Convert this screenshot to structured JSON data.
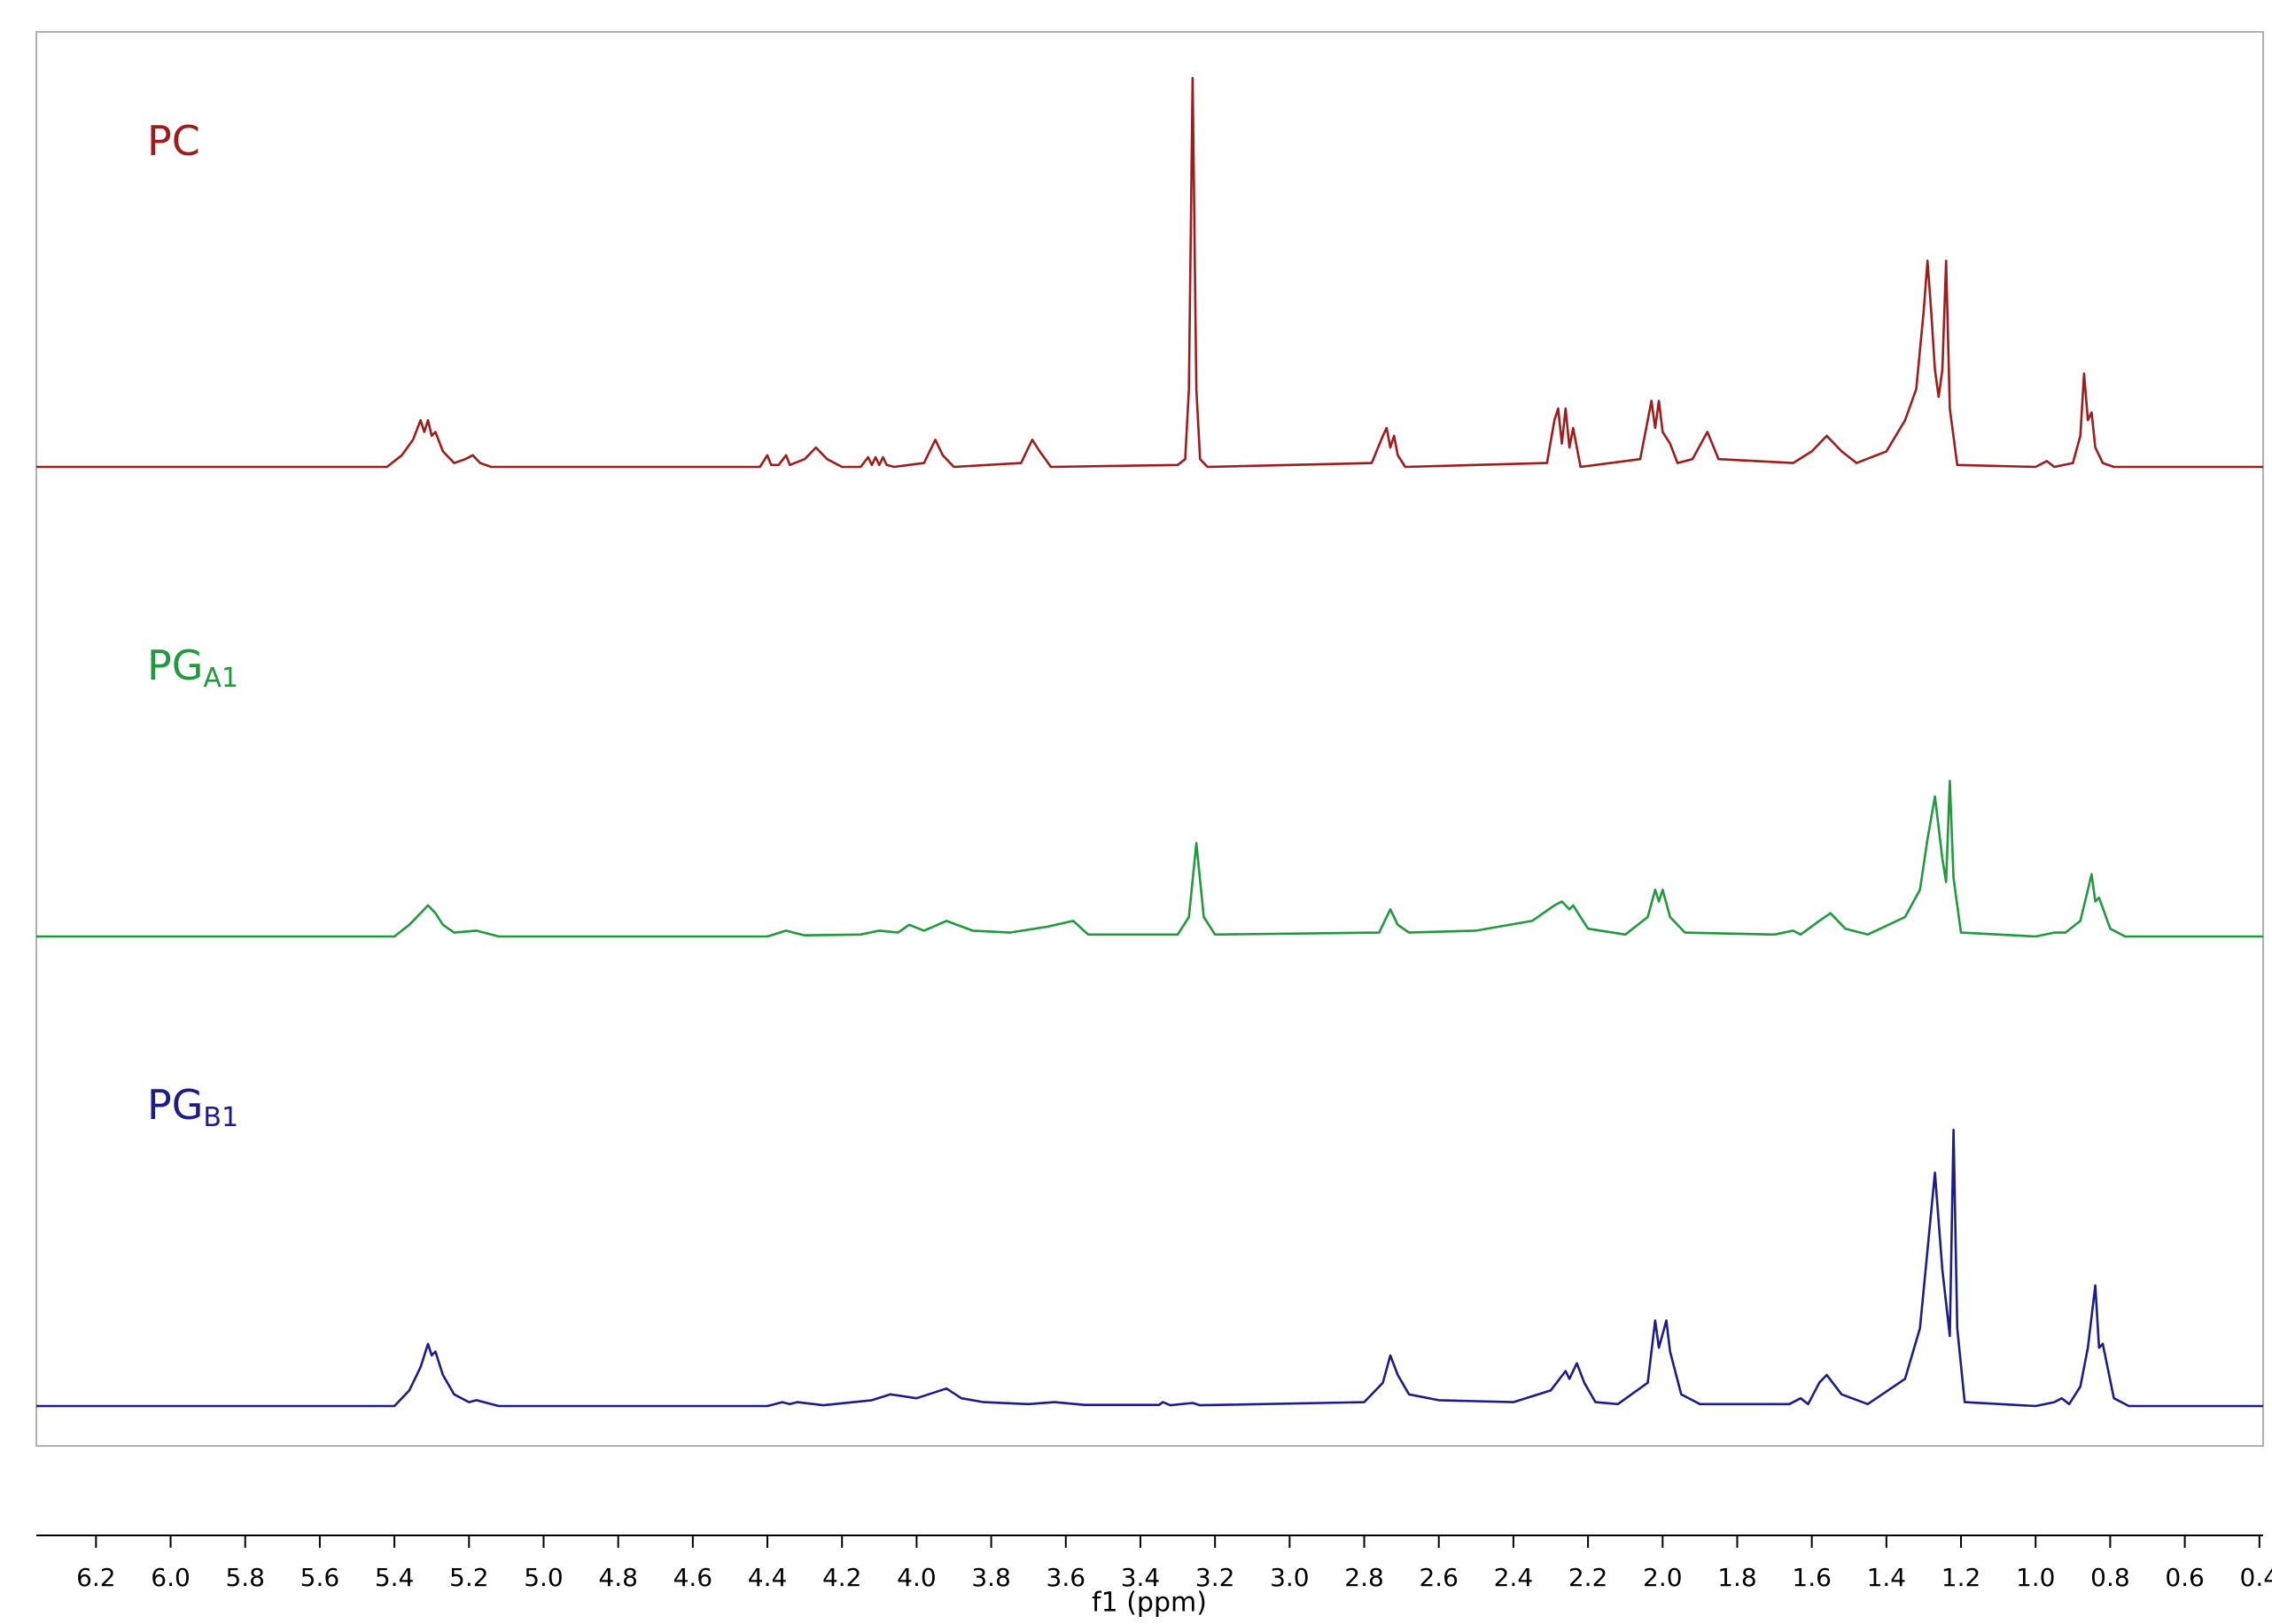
{
  "chart_data": {
    "type": "line",
    "xlabel": "f1 (ppm)",
    "xlim": [
      6.36,
      0.39
    ],
    "ylim": [
      0,
      100
    ],
    "reverse_x": true,
    "xticks": [
      6.2,
      {
        "value": 6,
        "label": "6.0"
      },
      5.8,
      5.6,
      5.4,
      5.2,
      {
        "value": 5,
        "label": "5.0"
      },
      4.8,
      4.6,
      4.4,
      4.2,
      {
        "value": 4,
        "label": "4.0"
      },
      3.8,
      3.6,
      3.4,
      3.2,
      {
        "value": 3,
        "label": "3.0"
      },
      2.8,
      2.6,
      2.4,
      2.2,
      {
        "value": 2,
        "label": "2.0"
      },
      1.8,
      1.6,
      1.4,
      1.2,
      {
        "value": 1,
        "label": "1.0"
      },
      0.8,
      0.6,
      0.4
    ],
    "series": [
      {
        "name": "PC",
        "color": "#a01c1c",
        "x": [
          6.36,
          5.42,
          5.38,
          5.35,
          5.33,
          5.32,
          5.31,
          5.3,
          5.29,
          5.27,
          5.24,
          5.21,
          5.19,
          5.17,
          5.14,
          4.42,
          4.4,
          4.39,
          4.37,
          4.35,
          4.34,
          4.3,
          4.27,
          4.24,
          4.2,
          4.15,
          4.13,
          4.12,
          4.11,
          4.1,
          4.09,
          4.08,
          4.06,
          3.98,
          3.95,
          3.93,
          3.9,
          3.72,
          3.69,
          3.67,
          3.64,
          3.3,
          3.28,
          3.27,
          3.26,
          3.25,
          3.24,
          3.22,
          2.78,
          2.75,
          2.74,
          2.73,
          2.72,
          2.71,
          2.69,
          2.31,
          2.29,
          2.28,
          2.27,
          2.26,
          2.25,
          2.24,
          2.22,
          2.06,
          2.04,
          2.03,
          2.02,
          2.01,
          2.0,
          1.98,
          1.96,
          1.92,
          1.88,
          1.85,
          1.65,
          1.6,
          1.56,
          1.52,
          1.48,
          1.4,
          1.35,
          1.32,
          1.3,
          1.29,
          1.28,
          1.27,
          1.26,
          1.25,
          1.24,
          1.23,
          1.21,
          1.0,
          0.97,
          0.95,
          0.9,
          0.88,
          0.87,
          0.86,
          0.85,
          0.84,
          0.82,
          0.79,
          0.39
        ],
        "values": [
          0,
          0,
          3,
          7,
          12,
          9,
          12,
          8,
          9,
          4,
          1,
          2,
          3,
          1,
          0,
          0,
          3,
          0.5,
          0.5,
          3,
          0.5,
          2,
          5,
          2,
          0,
          0,
          2.5,
          0.5,
          2.5,
          0.5,
          2.5,
          0.5,
          0,
          1,
          7,
          3,
          0,
          1,
          7,
          4,
          0,
          0.5,
          2,
          20,
          100,
          20,
          2,
          0,
          1,
          8,
          10,
          5,
          8,
          3,
          0,
          1,
          12,
          15,
          6,
          15,
          5,
          10,
          0,
          2,
          12,
          17,
          10,
          17,
          9,
          6,
          1,
          2,
          9,
          2,
          1,
          4,
          8,
          4,
          1,
          4,
          12,
          20,
          40,
          53,
          40,
          25,
          18,
          25,
          53,
          15,
          0.5,
          0,
          1.5,
          0,
          1,
          8,
          24,
          12,
          14,
          5,
          1,
          0,
          0
        ]
      },
      {
        "name": "PG",
        "subscript": "A1",
        "color": "#1f9a3c",
        "x": [
          6.36,
          5.4,
          5.36,
          5.33,
          5.31,
          5.29,
          5.27,
          5.24,
          5.18,
          5.12,
          4.4,
          4.35,
          4.33,
          4.3,
          4.15,
          4.1,
          4.05,
          4.02,
          3.98,
          3.92,
          3.85,
          3.75,
          3.65,
          3.58,
          3.54,
          3.36,
          3.3,
          3.27,
          3.25,
          3.23,
          3.2,
          2.76,
          2.73,
          2.71,
          2.68,
          2.5,
          2.35,
          2.29,
          2.27,
          2.25,
          2.24,
          2.2,
          2.1,
          2.04,
          2.02,
          2.01,
          2.0,
          1.98,
          1.94,
          1.7,
          1.65,
          1.63,
          1.58,
          1.55,
          1.51,
          1.45,
          1.35,
          1.31,
          1.29,
          1.27,
          1.25,
          1.24,
          1.23,
          1.22,
          1.2,
          1.0,
          0.95,
          0.92,
          0.88,
          0.85,
          0.84,
          0.83,
          0.8,
          0.76,
          0.39
        ],
        "values": [
          0,
          0,
          3,
          6,
          8,
          6,
          3,
          1,
          1.5,
          0,
          0,
          1.5,
          1,
          0.3,
          0.5,
          1.5,
          1,
          3,
          1.5,
          4,
          1.5,
          1,
          2.5,
          4,
          0.5,
          0.5,
          0.5,
          5,
          24,
          5,
          0.5,
          1,
          7,
          3,
          1,
          1.5,
          4,
          8,
          9,
          7,
          8,
          2,
          0.5,
          5,
          12,
          9,
          12,
          5,
          1,
          0.5,
          1.5,
          0.5,
          4,
          6,
          2,
          0.5,
          5,
          12,
          25,
          36,
          20,
          14,
          40,
          15,
          1,
          0,
          1,
          1,
          4,
          16,
          9,
          10,
          2,
          0,
          0
        ]
      },
      {
        "name": "PG",
        "subscript": "B1",
        "color": "#1c1c8c",
        "x": [
          6.36,
          5.4,
          5.36,
          5.33,
          5.31,
          5.3,
          5.29,
          5.27,
          5.24,
          5.2,
          5.18,
          5.12,
          4.4,
          4.36,
          4.34,
          4.32,
          4.25,
          4.12,
          4.07,
          4.0,
          3.92,
          3.88,
          3.82,
          3.7,
          3.63,
          3.55,
          3.35,
          3.34,
          3.32,
          3.26,
          3.24,
          2.8,
          2.75,
          2.73,
          2.71,
          2.68,
          2.6,
          2.4,
          2.3,
          2.26,
          2.25,
          2.23,
          2.21,
          2.18,
          2.12,
          2.04,
          2.02,
          2.01,
          1.99,
          1.98,
          1.95,
          1.9,
          1.66,
          1.63,
          1.61,
          1.58,
          1.56,
          1.52,
          1.45,
          1.35,
          1.31,
          1.29,
          1.27,
          1.25,
          1.23,
          1.22,
          1.21,
          1.19,
          1.0,
          0.95,
          0.93,
          0.91,
          0.88,
          0.86,
          0.84,
          0.83,
          0.82,
          0.79,
          0.75,
          0.39
        ],
        "values": [
          0,
          0,
          4,
          10,
          16,
          13,
          14,
          8,
          3,
          1,
          1.5,
          0,
          0,
          1,
          0.5,
          1,
          0.2,
          1.5,
          3,
          2,
          4.5,
          2,
          1,
          0.5,
          1,
          0.3,
          0.3,
          1,
          0.2,
          0.8,
          0.2,
          1,
          6,
          13,
          8,
          3,
          1.5,
          1,
          4,
          9,
          7,
          11,
          6,
          1,
          0.5,
          6,
          22,
          15,
          22,
          14,
          3,
          0.5,
          0.5,
          2,
          0.5,
          6,
          8,
          3,
          0.5,
          7,
          20,
          40,
          60,
          35,
          18,
          71,
          20,
          1,
          0,
          1,
          2,
          0.5,
          5,
          15,
          31,
          15,
          16,
          2,
          0,
          0
        ]
      }
    ]
  }
}
